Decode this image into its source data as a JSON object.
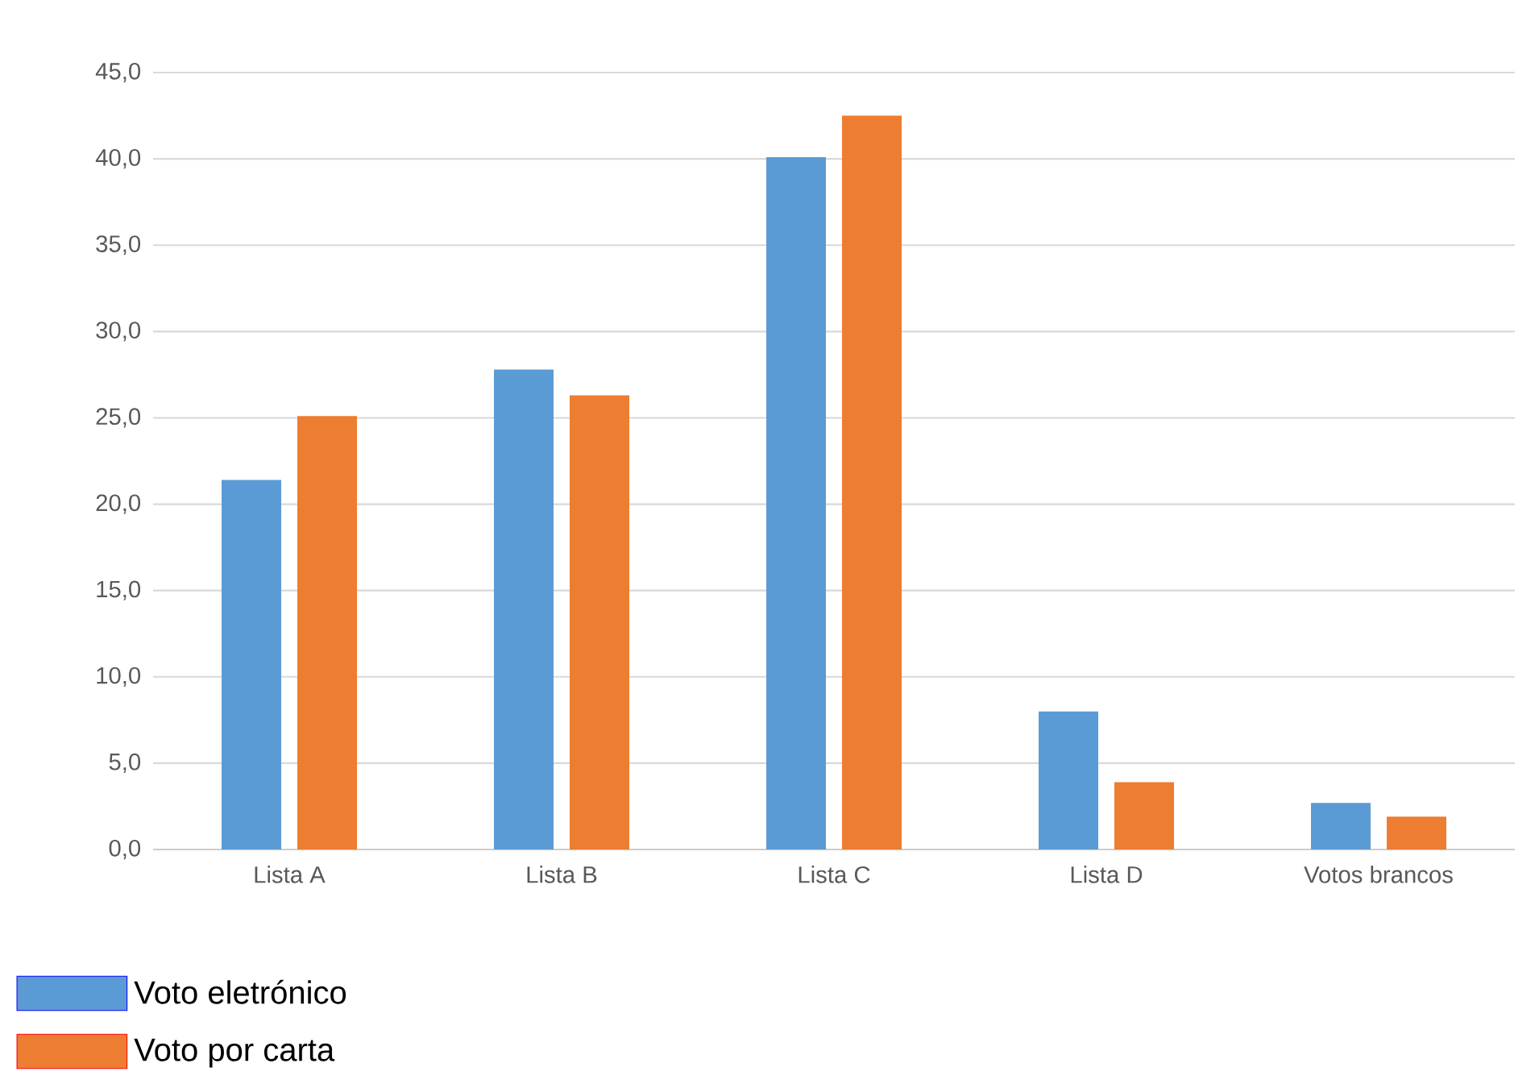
{
  "chart_data": {
    "type": "bar",
    "categories": [
      "Lista A",
      "Lista B",
      "Lista C",
      "Lista D",
      "Votos brancos"
    ],
    "series": [
      {
        "name": "Voto eletrónico",
        "color": "#5b9bd5",
        "values": [
          21.4,
          27.8,
          40.1,
          8.0,
          2.7
        ]
      },
      {
        "name": "Voto por carta",
        "color": "#ed7d31",
        "values": [
          25.1,
          26.3,
          42.5,
          3.9,
          1.9
        ]
      }
    ],
    "ylim": [
      0,
      45
    ],
    "yticks": [
      {
        "value": 0,
        "label": "0,0"
      },
      {
        "value": 5,
        "label": "5,0"
      },
      {
        "value": 10,
        "label": "10,0"
      },
      {
        "value": 15,
        "label": "15,0"
      },
      {
        "value": 20,
        "label": "20,0"
      },
      {
        "value": 25,
        "label": "25,0"
      },
      {
        "value": 30,
        "label": "30,0"
      },
      {
        "value": 35,
        "label": "35,0"
      },
      {
        "value": 40,
        "label": "40,0"
      },
      {
        "value": 45,
        "label": "45,0"
      }
    ],
    "grid": "y",
    "legend": "bottom left"
  }
}
